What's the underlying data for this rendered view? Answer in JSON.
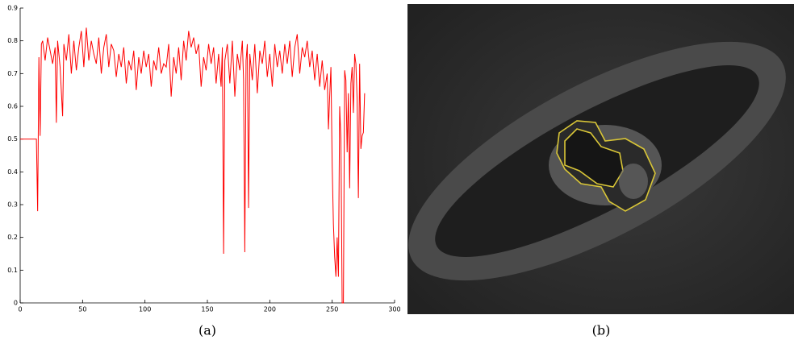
{
  "chart_data": {
    "type": "line",
    "caption": "(a)",
    "xlim": [
      0,
      300
    ],
    "xticks": [
      0,
      50,
      100,
      150,
      200,
      250,
      300
    ],
    "ylim": [
      0,
      0.9
    ],
    "yticks": [
      0,
      0.1,
      0.2,
      0.3,
      0.4,
      0.5,
      0.6,
      0.7,
      0.8,
      0.9
    ],
    "x": [
      0,
      13,
      14,
      15,
      16,
      17,
      18,
      20,
      22,
      24,
      26,
      28,
      29,
      30,
      32,
      34,
      35,
      37,
      39,
      41,
      43,
      45,
      47,
      49,
      51,
      53,
      55,
      57,
      59,
      61,
      63,
      65,
      67,
      69,
      71,
      73,
      75,
      77,
      79,
      81,
      83,
      85,
      87,
      89,
      91,
      93,
      95,
      97,
      99,
      101,
      103,
      105,
      107,
      109,
      111,
      113,
      115,
      117,
      119,
      121,
      123,
      125,
      127,
      129,
      131,
      133,
      135,
      137,
      139,
      141,
      143,
      145,
      147,
      149,
      151,
      153,
      155,
      157,
      159,
      161,
      162,
      163,
      164,
      166,
      168,
      170,
      172,
      174,
      176,
      178,
      179,
      180,
      181,
      182,
      183,
      184,
      186,
      188,
      190,
      192,
      194,
      196,
      198,
      200,
      202,
      204,
      206,
      208,
      210,
      212,
      214,
      216,
      218,
      220,
      222,
      224,
      226,
      228,
      230,
      232,
      234,
      236,
      238,
      240,
      242,
      244,
      246,
      247,
      248,
      249,
      250,
      251,
      252,
      253,
      254,
      255,
      256,
      257,
      258,
      259,
      260,
      261,
      262,
      263,
      264,
      265,
      266,
      267,
      268,
      269,
      270,
      271,
      272,
      273,
      274,
      275,
      276
    ],
    "series": [
      {
        "color": "#ff0000",
        "values": [
          0.5,
          0.5,
          0.28,
          0.75,
          0.51,
          0.79,
          0.8,
          0.74,
          0.81,
          0.77,
          0.73,
          0.78,
          0.55,
          0.8,
          0.72,
          0.57,
          0.79,
          0.74,
          0.82,
          0.7,
          0.8,
          0.71,
          0.78,
          0.83,
          0.72,
          0.84,
          0.74,
          0.8,
          0.76,
          0.73,
          0.81,
          0.7,
          0.78,
          0.82,
          0.72,
          0.79,
          0.77,
          0.69,
          0.76,
          0.72,
          0.78,
          0.67,
          0.74,
          0.71,
          0.77,
          0.65,
          0.75,
          0.7,
          0.77,
          0.72,
          0.76,
          0.66,
          0.74,
          0.71,
          0.78,
          0.7,
          0.73,
          0.72,
          0.79,
          0.63,
          0.75,
          0.7,
          0.78,
          0.68,
          0.8,
          0.74,
          0.83,
          0.78,
          0.81,
          0.76,
          0.79,
          0.66,
          0.75,
          0.71,
          0.79,
          0.73,
          0.78,
          0.67,
          0.76,
          0.66,
          0.78,
          0.15,
          0.74,
          0.79,
          0.67,
          0.8,
          0.63,
          0.76,
          0.71,
          0.8,
          0.68,
          0.155,
          0.74,
          0.79,
          0.29,
          0.76,
          0.68,
          0.79,
          0.64,
          0.77,
          0.73,
          0.8,
          0.69,
          0.76,
          0.66,
          0.79,
          0.72,
          0.77,
          0.7,
          0.79,
          0.73,
          0.8,
          0.69,
          0.78,
          0.82,
          0.7,
          0.78,
          0.75,
          0.8,
          0.72,
          0.77,
          0.68,
          0.76,
          0.66,
          0.74,
          0.65,
          0.7,
          0.53,
          0.63,
          0.72,
          0.42,
          0.24,
          0.14,
          0.08,
          0.2,
          0.08,
          0.6,
          0.5,
          0,
          0,
          0.71,
          0.68,
          0.46,
          0.64,
          0.35,
          0.67,
          0.72,
          0.58,
          0.76,
          0.73,
          0.62,
          0.32,
          0.73,
          0.47,
          0.51,
          0.52,
          0.64
        ]
      }
    ]
  },
  "image_panel": {
    "caption": "(b)"
  }
}
